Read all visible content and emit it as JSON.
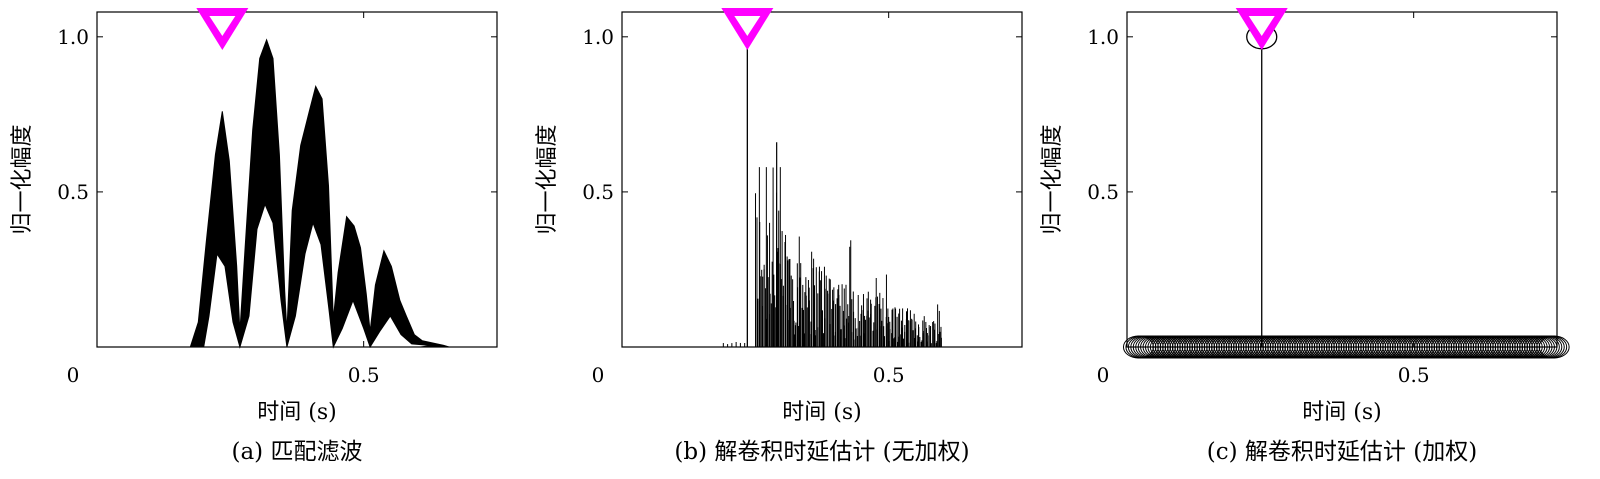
{
  "figure": {
    "panels": [
      {
        "caption": "(a) 匹配滤波",
        "xlabel": "时间 (s)",
        "ylabel": "归一化幅度",
        "x_ticks": [
          {
            "v": 0,
            "label": "0"
          },
          {
            "v": 0.5,
            "label": "0.5"
          }
        ],
        "y_ticks": [
          {
            "v": 0.5,
            "label": "0.5"
          },
          {
            "v": 1.0,
            "label": "1.0"
          }
        ]
      },
      {
        "caption": "(b) 解卷积时延估计 (无加权)",
        "xlabel": "时间 (s)",
        "ylabel": "归一化幅度",
        "x_ticks": [
          {
            "v": 0,
            "label": "0"
          },
          {
            "v": 0.5,
            "label": "0.5"
          }
        ],
        "y_ticks": [
          {
            "v": 0.5,
            "label": "0.5"
          },
          {
            "v": 1.0,
            "label": "1.0"
          }
        ]
      },
      {
        "caption": "(c) 解卷积时延估计 (加权)",
        "xlabel": "时间 (s)",
        "ylabel": "归一化幅度",
        "x_ticks": [
          {
            "v": 0,
            "label": "0"
          },
          {
            "v": 0.5,
            "label": "0.5"
          }
        ],
        "y_ticks": [
          {
            "v": 0.5,
            "label": "0.5"
          },
          {
            "v": 1.0,
            "label": "1.0"
          }
        ]
      }
    ]
  },
  "colors": {
    "marker": "#ff00ff",
    "trace": "#000000"
  },
  "chart_data": [
    {
      "type": "area",
      "xlim": [
        0,
        0.75
      ],
      "ylim": [
        0,
        1.08
      ],
      "marker_x": 0.235,
      "envelope_points": [
        [
          0.175,
          0.0
        ],
        [
          0.19,
          0.08
        ],
        [
          0.205,
          0.34
        ],
        [
          0.222,
          0.62
        ],
        [
          0.235,
          0.76
        ],
        [
          0.248,
          0.6
        ],
        [
          0.262,
          0.26
        ],
        [
          0.268,
          0.05
        ],
        [
          0.278,
          0.33
        ],
        [
          0.292,
          0.7
        ],
        [
          0.305,
          0.93
        ],
        [
          0.318,
          0.99
        ],
        [
          0.33,
          0.93
        ],
        [
          0.342,
          0.62
        ],
        [
          0.352,
          0.18
        ],
        [
          0.356,
          0.05
        ],
        [
          0.366,
          0.44
        ],
        [
          0.382,
          0.65
        ],
        [
          0.398,
          0.76
        ],
        [
          0.41,
          0.84
        ],
        [
          0.422,
          0.8
        ],
        [
          0.434,
          0.52
        ],
        [
          0.443,
          0.09
        ],
        [
          0.452,
          0.24
        ],
        [
          0.468,
          0.42
        ],
        [
          0.482,
          0.39
        ],
        [
          0.494,
          0.32
        ],
        [
          0.505,
          0.17
        ],
        [
          0.512,
          0.05
        ],
        [
          0.522,
          0.2
        ],
        [
          0.538,
          0.31
        ],
        [
          0.552,
          0.26
        ],
        [
          0.568,
          0.15
        ],
        [
          0.58,
          0.1
        ],
        [
          0.595,
          0.04
        ],
        [
          0.61,
          0.02
        ],
        [
          0.65,
          0.005
        ],
        [
          0.66,
          0.0
        ]
      ],
      "envelope_lower": [
        [
          0.175,
          0.0
        ],
        [
          0.2,
          0.0
        ],
        [
          0.21,
          0.1
        ],
        [
          0.225,
          0.3
        ],
        [
          0.24,
          0.26
        ],
        [
          0.255,
          0.08
        ],
        [
          0.268,
          0.0
        ],
        [
          0.285,
          0.1
        ],
        [
          0.3,
          0.38
        ],
        [
          0.315,
          0.46
        ],
        [
          0.33,
          0.4
        ],
        [
          0.345,
          0.15
        ],
        [
          0.356,
          0.0
        ],
        [
          0.372,
          0.1
        ],
        [
          0.39,
          0.3
        ],
        [
          0.405,
          0.4
        ],
        [
          0.42,
          0.33
        ],
        [
          0.435,
          0.12
        ],
        [
          0.443,
          0.0
        ],
        [
          0.46,
          0.06
        ],
        [
          0.48,
          0.15
        ],
        [
          0.5,
          0.06
        ],
        [
          0.512,
          0.0
        ],
        [
          0.53,
          0.05
        ],
        [
          0.55,
          0.1
        ],
        [
          0.57,
          0.04
        ],
        [
          0.59,
          0.01
        ],
        [
          0.66,
          0.0
        ]
      ]
    },
    {
      "type": "bar",
      "xlim": [
        0,
        0.75
      ],
      "ylim": [
        0,
        1.08
      ],
      "marker_x": 0.235,
      "direct_path": {
        "x": 0.235,
        "y": 1.0
      },
      "spike_region": [
        0.235,
        0.6
      ],
      "peak_spike": {
        "x": 0.29,
        "y": 0.66
      }
    },
    {
      "type": "scatter",
      "xlim": [
        0,
        0.75
      ],
      "ylim": [
        0,
        1.08
      ],
      "marker_x": 0.235,
      "peak": {
        "x": 0.235,
        "y": 1.0
      },
      "baseline_range": [
        0.02,
        0.745
      ],
      "baseline_y": 0.0
    }
  ]
}
